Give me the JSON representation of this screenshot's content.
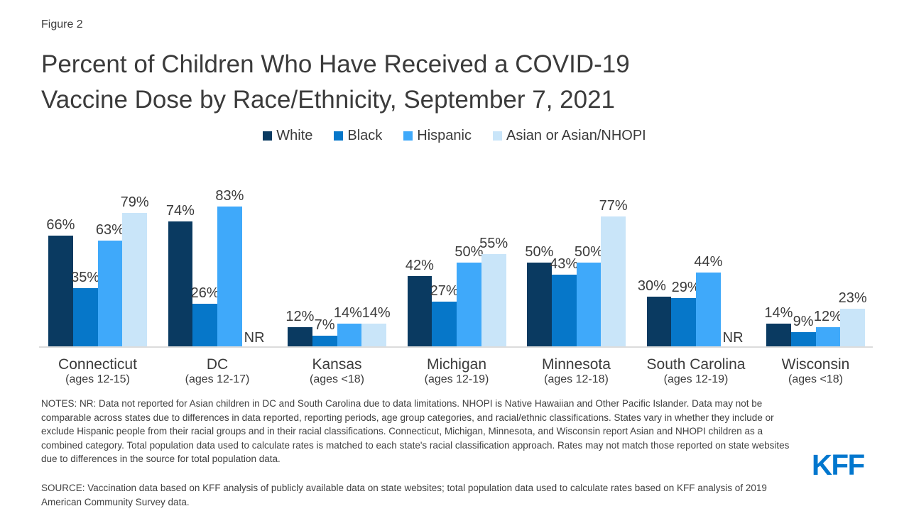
{
  "figure_label": "Figure 2",
  "title_lines": [
    "Percent of Children Who Have Received a COVID-19",
    "Vaccine Dose by Race/Ethnicity, September 7, 2021"
  ],
  "chart_data": {
    "type": "bar",
    "title": "Percent of Children Who Have Received a COVID-19 Vaccine Dose by Race/Ethnicity, September 7, 2021",
    "categories": [
      "Connecticut",
      "DC",
      "Kansas",
      "Michigan",
      "Minnesota",
      "South Carolina",
      "Wisconsin"
    ],
    "category_sublabels": [
      "(ages 12-15)",
      "(ages 12-17)",
      "(ages <18)",
      "(ages 12-19)",
      "(ages 12-18)",
      "(ages 12-19)",
      "(ages <18)"
    ],
    "series": [
      {
        "name": "White",
        "color": "#0a3a61",
        "values": [
          66,
          74,
          12,
          42,
          50,
          30,
          14
        ]
      },
      {
        "name": "Black",
        "color": "#0677c9",
        "values": [
          35,
          26,
          7,
          27,
          43,
          29,
          9
        ]
      },
      {
        "name": "Hispanic",
        "color": "#3fa9fa",
        "values": [
          63,
          83,
          14,
          50,
          50,
          44,
          12
        ]
      },
      {
        "name": "Asian or Asian/NHOPI",
        "color": "#c9e5f9",
        "values": [
          79,
          null,
          14,
          55,
          77,
          null,
          23
        ]
      }
    ],
    "null_label": "NR",
    "value_suffix": "%",
    "xlabel": "",
    "ylabel": "",
    "ylim": [
      0,
      100
    ],
    "grid": false,
    "legend_position": "top",
    "value_labels_shown": true
  },
  "notes": "NOTES:  NR: Data not reported for Asian children in DC and South Carolina due to data limitations. NHOPI is Native Hawaiian and Other Pacific Islander. Data may not be comparable across states due to differences in data reported, reporting periods, age group categories, and racial/ethnic classifications. States vary in whether they include or exclude Hispanic people from their racial groups and in their racial classifications. Connecticut, Michigan, Minnesota, and Wisconsin report Asian and NHOPI children as a combined category. Total population data used to calculate rates is matched to each state's racial classification approach. Rates may not match those reported on state websites due to differences in the source for total population data.",
  "source": "SOURCE: Vaccination data based on KFF analysis of publicly available data on state websites; total population data used to calculate rates based on KFF analysis of 2019 American Community Survey data.",
  "logo_text": "KFF",
  "colors": {
    "white_series": "#0a3a61",
    "black_series": "#0677c9",
    "hispanic_series": "#3fa9fa",
    "asian_series": "#c9e5f9",
    "axis_line": "#dcdcdc",
    "text": "#3b3b3b",
    "logo_blue": "#0277ce"
  }
}
